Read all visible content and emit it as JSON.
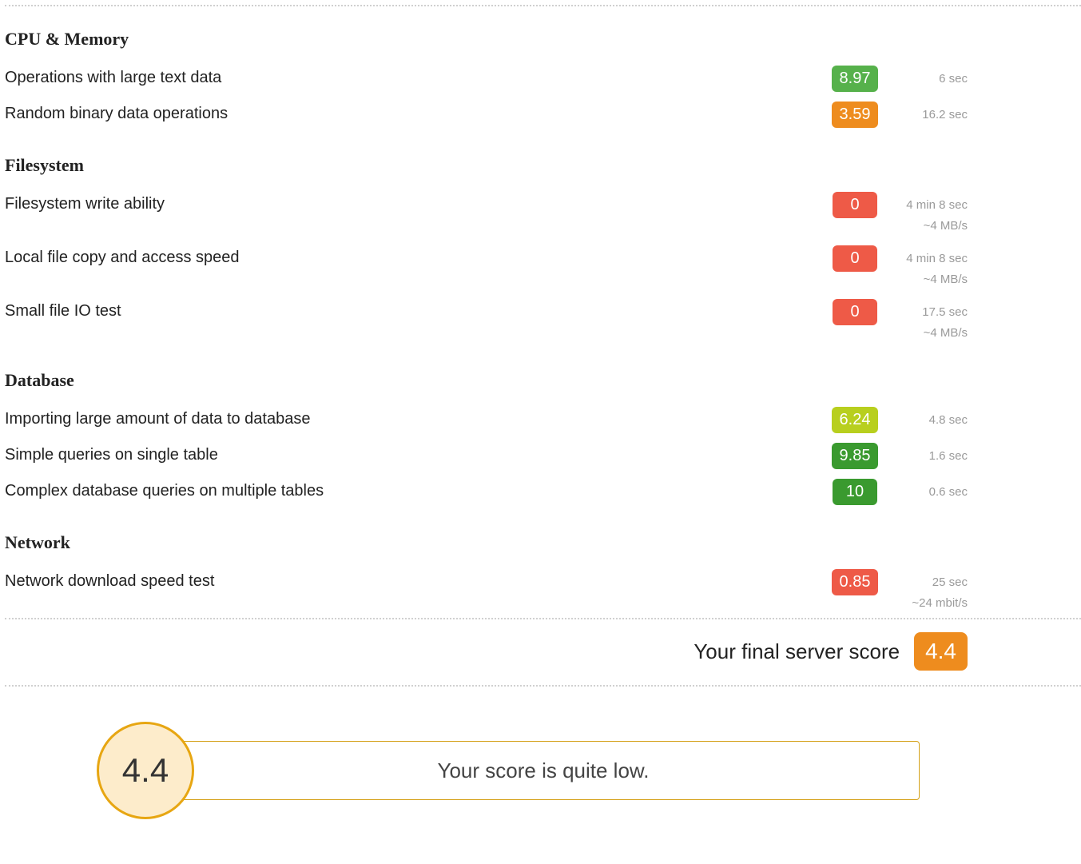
{
  "colors": {
    "green_strong": "#3a9a2f",
    "green": "#56b14b",
    "yellowgreen": "#b8cf1e",
    "orange": "#ee8c1e",
    "red": "#ee5a47",
    "text_muted": "#9a9a9a",
    "dotted": "#d0d0d0",
    "verdict_border": "#e7a612",
    "verdict_fill": "#fdeccb"
  },
  "sections": [
    {
      "title": "CPU & Memory",
      "metrics": [
        {
          "name": "operations-large-text",
          "label": "Operations with large text data",
          "score": "8.97",
          "score_color": "#56b14b",
          "meta": [
            "6 sec"
          ]
        },
        {
          "name": "random-binary-ops",
          "label": "Random binary data operations",
          "score": "3.59",
          "score_color": "#ee8c1e",
          "meta": [
            "16.2 sec"
          ]
        }
      ]
    },
    {
      "title": "Filesystem",
      "metrics": [
        {
          "name": "fs-write-ability",
          "label": "Filesystem write ability",
          "score": "0",
          "score_color": "#ee5a47",
          "meta": [
            "4 min 8 sec",
            "~4 MB/s"
          ]
        },
        {
          "name": "local-file-copy-speed",
          "label": "Local file copy and access speed",
          "score": "0",
          "score_color": "#ee5a47",
          "meta": [
            "4 min 8 sec",
            "~4 MB/s"
          ]
        },
        {
          "name": "small-file-io",
          "label": "Small file IO test",
          "score": "0",
          "score_color": "#ee5a47",
          "meta": [
            "17.5 sec",
            "~4 MB/s"
          ]
        }
      ]
    },
    {
      "title": "Database",
      "metrics": [
        {
          "name": "db-import-large",
          "label": "Importing large amount of data to database",
          "score": "6.24",
          "score_color": "#b8cf1e",
          "meta": [
            "4.8 sec"
          ]
        },
        {
          "name": "db-simple-query",
          "label": "Simple queries on single table",
          "score": "9.85",
          "score_color": "#3a9a2f",
          "meta": [
            "1.6 sec"
          ]
        },
        {
          "name": "db-complex-query",
          "label": "Complex database queries on multiple tables",
          "score": "10",
          "score_color": "#3a9a2f",
          "meta": [
            "0.6 sec"
          ]
        }
      ]
    },
    {
      "title": "Network",
      "metrics": [
        {
          "name": "network-download-speed",
          "label": "Network download speed test",
          "score": "0.85",
          "score_color": "#ee5a47",
          "meta": [
            "25 sec",
            "~24 mbit/s"
          ]
        }
      ]
    }
  ],
  "final": {
    "label": "Your final server score",
    "score": "4.4",
    "score_color": "#ee8c1e"
  },
  "verdict": {
    "score": "4.4",
    "text": "Your score is quite low."
  }
}
